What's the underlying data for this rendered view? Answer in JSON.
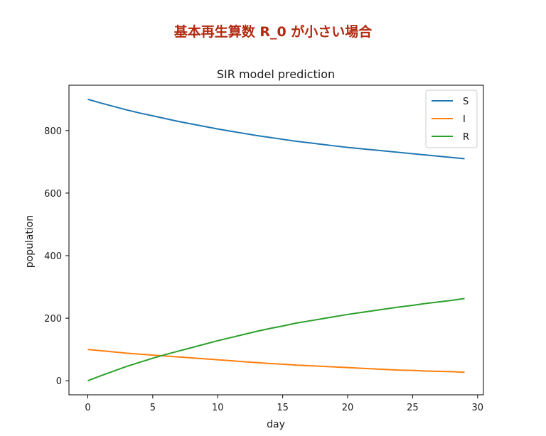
{
  "page": {
    "heading": "基本再生算数 R_0 が小さい場合"
  },
  "chart_data": {
    "type": "line",
    "title": "SIR model prediction",
    "xlabel": "day",
    "ylabel": "population",
    "xlim": [
      -1.45,
      30.45
    ],
    "ylim": [
      -45,
      945
    ],
    "xticks": [
      0,
      5,
      10,
      15,
      20,
      25,
      30
    ],
    "yticks": [
      0,
      200,
      400,
      600,
      800
    ],
    "grid": false,
    "legend_position": "top-right",
    "x": [
      0,
      1,
      2,
      3,
      4,
      5,
      6,
      7,
      8,
      9,
      10,
      11,
      12,
      13,
      14,
      15,
      16,
      17,
      18,
      19,
      20,
      21,
      22,
      23,
      24,
      25,
      26,
      27,
      28,
      29
    ],
    "series": [
      {
        "name": "S",
        "color": "#1f77b4",
        "values": [
          900,
          888,
          877,
          866,
          856,
          847,
          838,
          829,
          821,
          813,
          805,
          798,
          791,
          784,
          778,
          772,
          766,
          761,
          756,
          751,
          746,
          742,
          738,
          734,
          730,
          726,
          722,
          718,
          714,
          710
        ]
      },
      {
        "name": "I",
        "color": "#ff7f0e",
        "values": [
          100,
          96,
          92,
          88,
          85,
          82,
          79,
          76,
          73,
          70,
          67,
          64,
          61,
          58,
          55,
          53,
          50,
          48,
          46,
          44,
          42,
          40,
          38,
          36,
          34,
          33,
          31,
          30,
          29,
          27
        ]
      },
      {
        "name": "R",
        "color": "#2ca02c",
        "values": [
          0,
          16,
          31,
          46,
          59,
          72,
          84,
          95,
          106,
          117,
          128,
          138,
          148,
          158,
          167,
          175,
          184,
          191,
          198,
          205,
          212,
          218,
          224,
          230,
          236,
          241,
          247,
          252,
          257,
          263
        ]
      }
    ]
  }
}
